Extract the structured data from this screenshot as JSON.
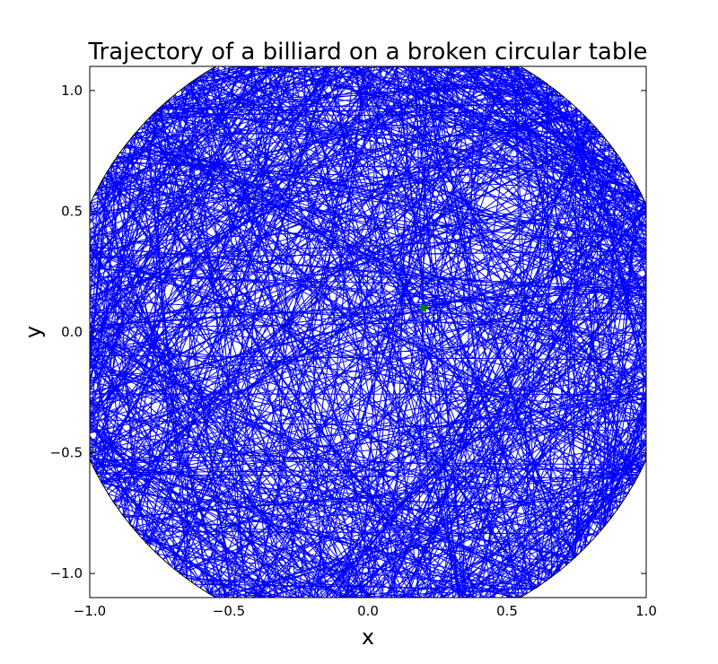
{
  "chart_data": {
    "type": "line",
    "title": "Trajectory of a billiard on a broken circular table",
    "xlabel": "x",
    "ylabel": "y",
    "xlim": [
      -1.0,
      1.0
    ],
    "ylim": [
      -1.1,
      1.1
    ],
    "xticks": [
      "−1.0",
      "−0.5",
      "0.0",
      "0.5",
      "1.0"
    ],
    "xtick_values": [
      -1.0,
      -0.5,
      0.0,
      0.5,
      1.0
    ],
    "yticks": [
      "−1.0",
      "−0.5",
      "0.0",
      "0.5",
      "1.0"
    ],
    "ytick_values": [
      -1.0,
      -0.5,
      0.0,
      0.5,
      1.0
    ],
    "table_boundary": {
      "shape": "circle",
      "center": [
        0.0,
        0.0
      ],
      "radius": 1.1,
      "color": "#000000"
    },
    "trajectory": {
      "color": "#0000ff",
      "segments_estimate": 900
    },
    "start_point": {
      "x": 0.2,
      "y": 0.1,
      "color": "#008000"
    },
    "grid": false
  }
}
